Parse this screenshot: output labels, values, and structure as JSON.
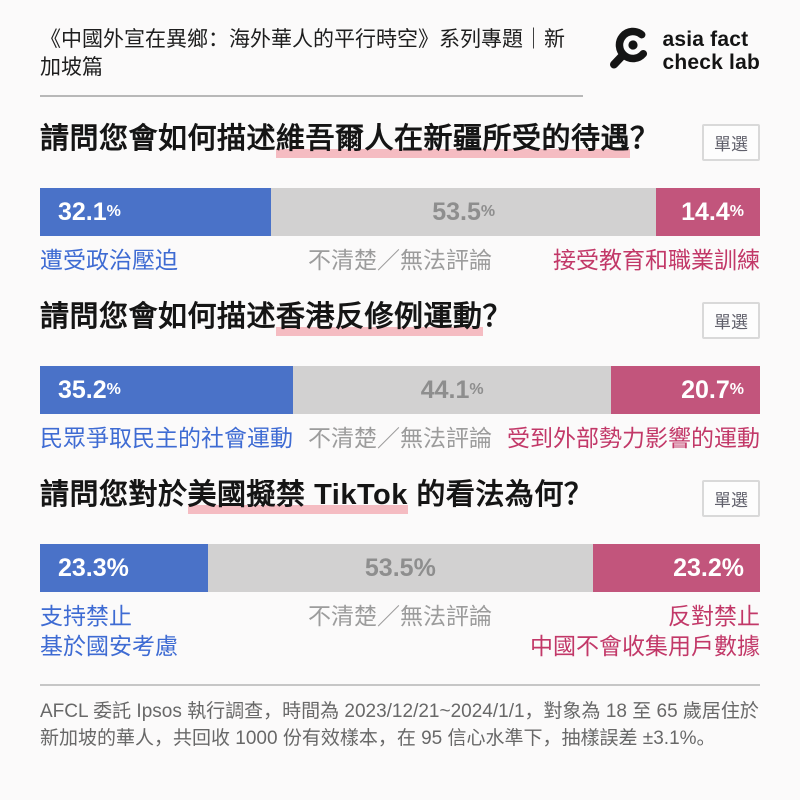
{
  "header": {
    "series_title": "《中國外宣在異鄉：海外華人的平行時空》系列專題｜新加坡篇",
    "logo": {
      "line1": "asia fact",
      "line2": "check lab",
      "icon": "magnifier-logo"
    }
  },
  "questions": [
    {
      "title_pre": "請問您會如何描述",
      "title_hl": "維吾爾人在新疆所受的待遇",
      "title_post": "？",
      "badge": "單選",
      "segments": [
        {
          "value": 32.1,
          "display": "32.1",
          "pct_sign": "%",
          "label_lines": [
            "遭受政治壓迫"
          ]
        },
        {
          "value": 53.5,
          "display": "53.5",
          "pct_sign": "%",
          "label_lines": [
            "不清楚／無法評論"
          ]
        },
        {
          "value": 14.4,
          "display": "14.4",
          "pct_sign": "%",
          "label_lines": [
            "接受教育和職業訓練"
          ]
        }
      ]
    },
    {
      "title_pre": "請問您會如何描述",
      "title_hl": "香港反修例運動",
      "title_post": "？",
      "badge": "單選",
      "segments": [
        {
          "value": 35.2,
          "display": "35.2",
          "pct_sign": "%",
          "label_lines": [
            "民眾爭取民主的社會運動"
          ]
        },
        {
          "value": 44.1,
          "display": "44.1",
          "pct_sign": "%",
          "label_lines": [
            "不清楚／無法評論"
          ]
        },
        {
          "value": 20.7,
          "display": "20.7",
          "pct_sign": "%",
          "label_lines": [
            "受到外部勢力影響的運動"
          ]
        }
      ]
    },
    {
      "title_pre": "請問您對於",
      "title_hl": "美國擬禁 TikTok",
      "title_post": " 的看法為何？",
      "badge": "單選",
      "segments": [
        {
          "value": 23.3,
          "display": "23.3",
          "pct_sign": "%",
          "label_lines": [
            "支持禁止",
            "基於國安考慮"
          ]
        },
        {
          "value": 53.5,
          "display": "53.5",
          "pct_sign": "%",
          "label_lines": [
            "不清楚／無法評論"
          ]
        },
        {
          "value": 23.2,
          "display": "23.2",
          "pct_sign": "%",
          "label_lines": [
            "反對禁止",
            "中國不會收集用戶數據"
          ]
        }
      ]
    }
  ],
  "footer": {
    "lines": [
      "AFCL 委託 Ipsos 執行調查，時間為 2023/12/21~2024/1/1，對象為 18 至 65 歲居住於",
      "新加坡的華人，共回收 1000 份有效樣本，在 95 信心水準下，抽樣誤差 ±3.1%。"
    ]
  },
  "colors": {
    "background": "#fbfafa",
    "bar_blue": "#4a72c8",
    "bar_gray": "#d2d1d1",
    "bar_pink": "#c2557c",
    "label_blue": "#3e6bd3",
    "label_gray": "#9c9c9c",
    "label_pink": "#c23868",
    "highlight_underline": "#f5bcc2",
    "logo_black": "#141414"
  },
  "chart_data": [
    {
      "type": "bar",
      "orientation": "horizontal",
      "stacked": true,
      "title": "請問您會如何描述維吾爾人在新疆所受的待遇？",
      "categories": [
        "遭受政治壓迫",
        "不清楚／無法評論",
        "接受教育和職業訓練"
      ],
      "values": [
        32.1,
        53.5,
        14.4
      ],
      "unit": "%",
      "colors": [
        "#4a72c8",
        "#d2d1d1",
        "#c2557c"
      ],
      "annotation": "單選"
    },
    {
      "type": "bar",
      "orientation": "horizontal",
      "stacked": true,
      "title": "請問您會如何描述香港反修例運動？",
      "categories": [
        "民眾爭取民主的社會運動",
        "不清楚／無法評論",
        "受到外部勢力影響的運動"
      ],
      "values": [
        35.2,
        44.1,
        20.7
      ],
      "unit": "%",
      "colors": [
        "#4a72c8",
        "#d2d1d1",
        "#c2557c"
      ],
      "annotation": "單選"
    },
    {
      "type": "bar",
      "orientation": "horizontal",
      "stacked": true,
      "title": "請問您對於美國擬禁 TikTok 的看法為何？",
      "categories": [
        "支持禁止 基於國安考慮",
        "不清楚／無法評論",
        "反對禁止 中國不會收集用戶數據"
      ],
      "values": [
        23.3,
        53.5,
        23.2
      ],
      "unit": "%",
      "colors": [
        "#4a72c8",
        "#d2d1d1",
        "#c2557c"
      ],
      "annotation": "單選"
    }
  ]
}
